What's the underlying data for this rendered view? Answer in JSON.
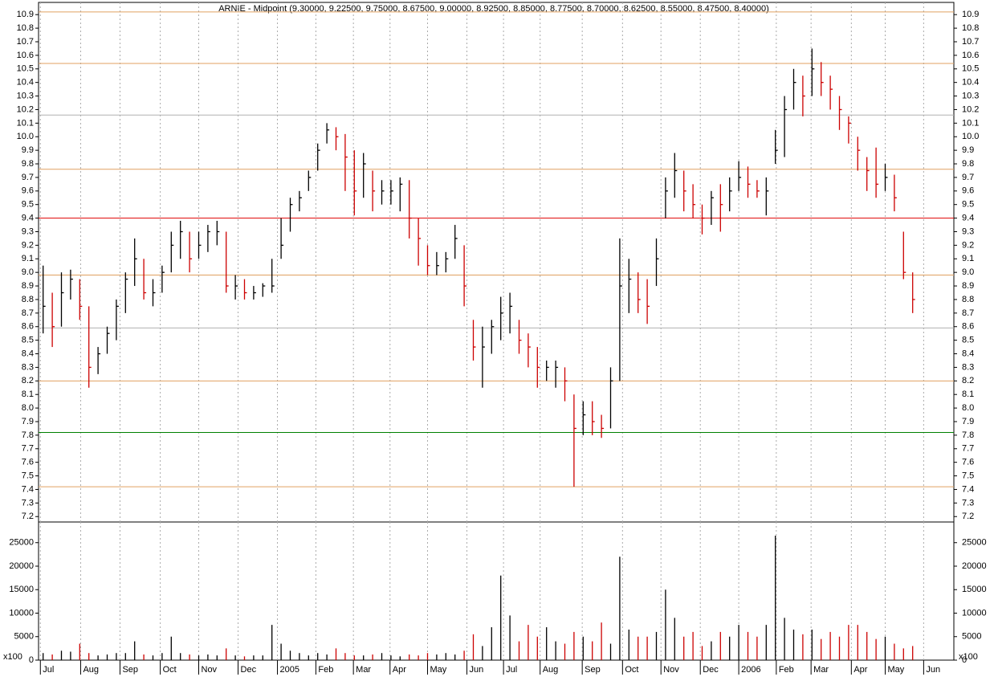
{
  "chart_data": {
    "type": "ohlc",
    "title": "ARNIE - Midpoint (9.30000, 9.22500, 9.75000, 8.67500, 9.00000, 8.92500, 8.85000, 8.77500, 8.70000, 8.62500, 8.55000, 8.47500, 8.40000)",
    "xlim": [
      0,
      100
    ],
    "xticks": [
      {
        "value": 0.2,
        "label": "Jul"
      },
      {
        "value": 4.6,
        "label": "Aug"
      },
      {
        "value": 8.9,
        "label": "Sep"
      },
      {
        "value": 13.3,
        "label": "Oct"
      },
      {
        "value": 17.5,
        "label": "Nov"
      },
      {
        "value": 21.8,
        "label": "Dec"
      },
      {
        "value": 26.1,
        "label": "2005"
      },
      {
        "value": 30.3,
        "label": "Feb"
      },
      {
        "value": 34.4,
        "label": "Mar"
      },
      {
        "value": 38.4,
        "label": "Apr"
      },
      {
        "value": 42.5,
        "label": "May"
      },
      {
        "value": 46.8,
        "label": "Jun"
      },
      {
        "value": 50.8,
        "label": "Jul"
      },
      {
        "value": 54.8,
        "label": "Aug"
      },
      {
        "value": 59.4,
        "label": "Sep"
      },
      {
        "value": 63.8,
        "label": "Oct"
      },
      {
        "value": 68.0,
        "label": "Nov"
      },
      {
        "value": 72.3,
        "label": "Dec"
      },
      {
        "value": 76.5,
        "label": "2006"
      },
      {
        "value": 80.6,
        "label": "Feb"
      },
      {
        "value": 84.4,
        "label": "Mar"
      },
      {
        "value": 88.8,
        "label": "Apr"
      },
      {
        "value": 92.5,
        "label": "May"
      },
      {
        "value": 96.7,
        "label": "Jun"
      }
    ],
    "ylim": [
      7.16,
      10.99
    ],
    "yticks": [
      7.2,
      7.3,
      7.4,
      7.5,
      7.6,
      7.7,
      7.8,
      7.9,
      {
        "value": 8,
        "label": "8.0"
      },
      8.1,
      8.2,
      8.3,
      8.4,
      8.5,
      8.6,
      8.7,
      8.8,
      8.9,
      {
        "value": 9,
        "label": "9.0"
      },
      9.1,
      9.2,
      9.3,
      9.4,
      9.5,
      9.6,
      9.7,
      9.8,
      9.9,
      {
        "value": 10,
        "label": "10.0"
      },
      10.1,
      10.2,
      10.3,
      10.4,
      10.5,
      10.6,
      10.7,
      10.8,
      10.9
    ],
    "grid": true,
    "up_color": "#000000",
    "down_color": "#cc0000",
    "levels": [
      {
        "value": 10.92,
        "color": "#e0a060"
      },
      {
        "value": 10.54,
        "color": "#e0a060"
      },
      {
        "value": 10.16,
        "color": "#b0b0b0"
      },
      {
        "value": 9.76,
        "color": "#e0a060"
      },
      {
        "value": 9.4,
        "color": "#e00000"
      },
      {
        "value": 8.98,
        "color": "#e0a060"
      },
      {
        "value": 8.59,
        "color": "#b0b0b0"
      },
      {
        "value": 8.2,
        "color": "#e0a060"
      },
      {
        "value": 7.82,
        "color": "#008000"
      },
      {
        "value": 7.42,
        "color": "#e0a060"
      }
    ],
    "high": [
      9.05,
      8.85,
      9.0,
      9.02,
      8.95,
      8.75,
      8.45,
      8.6,
      8.8,
      9.0,
      9.25,
      9.1,
      8.95,
      9.05,
      9.3,
      9.38,
      9.3,
      9.3,
      9.35,
      9.38,
      9.3,
      8.98,
      8.95,
      8.9,
      8.92,
      9.1,
      9.4,
      9.55,
      9.6,
      9.75,
      9.95,
      10.1,
      10.07,
      10.02,
      9.9,
      9.88,
      9.75,
      9.68,
      9.68,
      9.7,
      9.68,
      9.4,
      9.2,
      9.15,
      9.15,
      9.35,
      9.2,
      8.65,
      8.6,
      8.65,
      8.82,
      8.85,
      8.65,
      8.55,
      8.45,
      8.35,
      8.35,
      8.3,
      8.1,
      8.05,
      8.05,
      7.95,
      8.3,
      9.25,
      9.1,
      9.0,
      8.95,
      9.25,
      9.7,
      9.88,
      9.75,
      9.65,
      9.5,
      9.6,
      9.65,
      9.7,
      9.82,
      9.78,
      9.68,
      9.7,
      10.05,
      10.3,
      10.5,
      10.45,
      10.65,
      10.55,
      10.45,
      10.3,
      10.15,
      10.0,
      9.85,
      9.92,
      9.8,
      9.72,
      9.3,
      9.0
    ],
    "low": [
      8.55,
      8.45,
      8.6,
      8.8,
      8.65,
      8.15,
      8.25,
      8.4,
      8.5,
      8.7,
      8.9,
      8.8,
      8.75,
      8.85,
      9.0,
      9.1,
      9.0,
      9.1,
      9.15,
      9.2,
      8.85,
      8.8,
      8.8,
      8.8,
      8.82,
      8.85,
      9.1,
      9.3,
      9.45,
      9.6,
      9.75,
      9.95,
      9.9,
      9.6,
      9.42,
      9.55,
      9.45,
      9.5,
      9.5,
      9.45,
      9.25,
      9.05,
      8.98,
      8.98,
      9.0,
      9.1,
      8.75,
      8.35,
      8.15,
      8.4,
      8.5,
      8.55,
      8.4,
      8.3,
      8.15,
      8.2,
      8.15,
      8.05,
      7.42,
      7.8,
      7.8,
      7.78,
      7.85,
      8.2,
      8.7,
      8.7,
      8.62,
      8.9,
      9.4,
      9.55,
      9.45,
      9.4,
      9.28,
      9.35,
      9.3,
      9.45,
      9.6,
      9.55,
      9.55,
      9.42,
      9.8,
      9.85,
      10.2,
      10.15,
      10.3,
      10.3,
      10.2,
      10.05,
      9.95,
      9.75,
      9.6,
      9.55,
      9.6,
      9.45,
      8.95,
      8.7
    ],
    "close": [
      8.75,
      8.6,
      8.85,
      8.95,
      8.75,
      8.3,
      8.4,
      8.55,
      8.75,
      8.95,
      9.1,
      8.85,
      8.85,
      9.0,
      9.2,
      9.3,
      9.1,
      9.2,
      9.3,
      9.3,
      8.9,
      8.9,
      8.85,
      8.85,
      8.9,
      8.9,
      9.2,
      9.5,
      9.55,
      9.7,
      9.9,
      10.05,
      10.0,
      9.85,
      9.6,
      9.8,
      9.6,
      9.6,
      9.6,
      9.65,
      9.4,
      9.25,
      9.05,
      9.05,
      9.1,
      9.25,
      8.9,
      8.45,
      8.45,
      8.6,
      8.7,
      8.75,
      8.5,
      8.45,
      8.3,
      8.3,
      8.3,
      8.2,
      7.85,
      7.95,
      7.9,
      7.85,
      8.2,
      8.9,
      8.95,
      8.8,
      8.75,
      9.1,
      9.6,
      9.75,
      9.6,
      9.5,
      9.4,
      9.55,
      9.5,
      9.6,
      9.7,
      9.65,
      9.6,
      9.6,
      9.9,
      10.2,
      10.4,
      10.3,
      10.5,
      10.4,
      10.35,
      10.2,
      10.1,
      9.9,
      9.75,
      9.65,
      9.7,
      9.55,
      9.0,
      8.8
    ],
    "volume": {
      "values": [
        1500,
        1200,
        2000,
        1800,
        3500,
        1500,
        1000,
        1200,
        1500,
        1500,
        4000,
        1200,
        1000,
        1500,
        5000,
        1500,
        1200,
        1000,
        1200,
        1000,
        2500,
        1000,
        800,
        1000,
        1000,
        7500,
        3500,
        2000,
        1500,
        1000,
        1500,
        1200,
        2500,
        1500,
        1000,
        1000,
        1200,
        1500,
        1000,
        800,
        1200,
        1000,
        1500,
        1200,
        1500,
        1200,
        2000,
        5500,
        3000,
        7000,
        18000,
        9500,
        4000,
        7500,
        5000,
        7000,
        4000,
        3500,
        6000,
        5000,
        4000,
        8000,
        3500,
        22000,
        6500,
        5000,
        5000,
        6000,
        15000,
        9000,
        5000,
        6000,
        3000,
        4000,
        6000,
        5000,
        7500,
        6000,
        5000,
        7500,
        26500,
        9000,
        6500,
        5500,
        6500,
        4500,
        6000,
        5000,
        7500,
        7500,
        6000,
        4500,
        5000,
        3500,
        2500,
        3000
      ],
      "ylim": [
        0,
        29400
      ],
      "yticks": [
        0,
        5000,
        10000,
        15000,
        20000,
        25000
      ],
      "unit_label": "x100"
    }
  }
}
